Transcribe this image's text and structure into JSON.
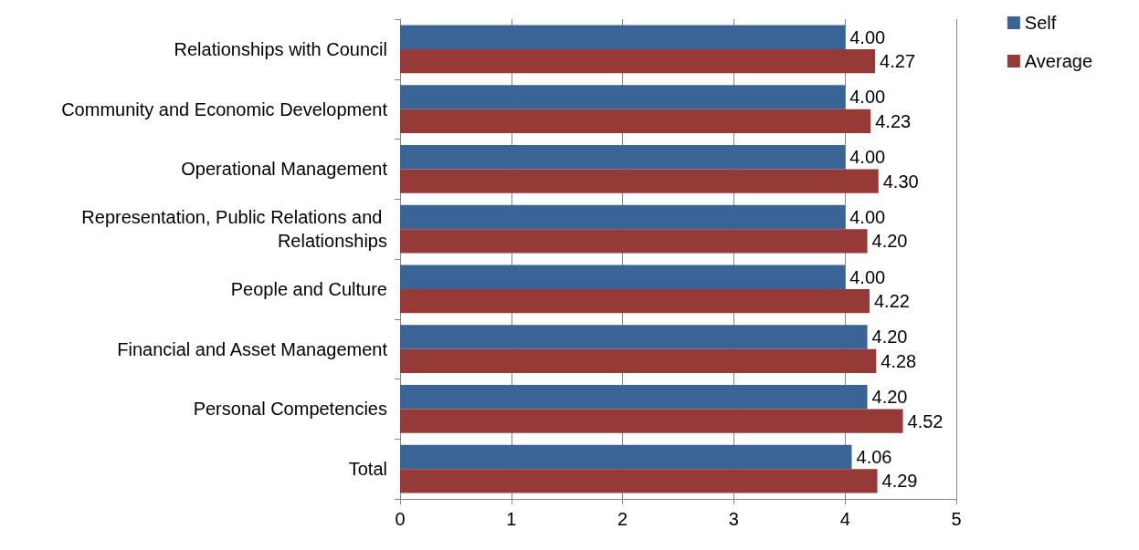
{
  "chart_data": {
    "type": "bar",
    "orientation": "horizontal",
    "categories": [
      "Relationships with Council",
      "Community and Economic Development",
      "Operational Management",
      "Representation, Public Relations and Relationships",
      "People and Culture",
      "Financial and Asset Management",
      "Personal Competencies",
      "Total"
    ],
    "series": [
      {
        "name": "Self",
        "color": "#3a6496",
        "values": [
          4.0,
          4.0,
          4.0,
          4.0,
          4.0,
          4.2,
          4.2,
          4.06
        ],
        "value_labels": [
          "4.00",
          "4.00",
          "4.00",
          "4.00",
          "4.00",
          "4.20",
          "4.20",
          "4.06"
        ]
      },
      {
        "name": "Average",
        "color": "#963a38",
        "values": [
          4.27,
          4.23,
          4.3,
          4.2,
          4.22,
          4.28,
          4.52,
          4.29
        ],
        "value_labels": [
          "4.27",
          "4.23",
          "4.30",
          "4.20",
          "4.22",
          "4.28",
          "4.52",
          "4.29"
        ]
      }
    ],
    "xlim": [
      0,
      5
    ],
    "xticks": [
      0,
      1,
      2,
      3,
      4,
      5
    ],
    "grid": "x",
    "legend": "top right"
  }
}
